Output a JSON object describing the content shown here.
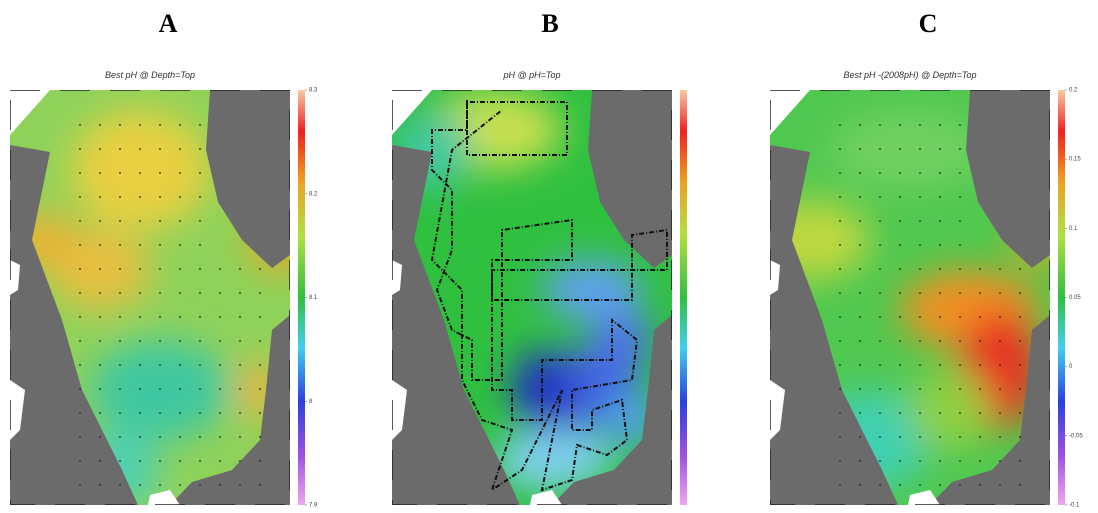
{
  "panels": [
    {
      "label": "A",
      "title": "Best pH @ Depth=Top",
      "colorbar": {
        "lim": [
          7.9,
          8.3
        ],
        "ticks": [
          7.9,
          8,
          8.1,
          8.2,
          8.3
        ]
      }
    },
    {
      "label": "B",
      "title": "pH @ pH=Top"
    },
    {
      "label": "C",
      "title": "Best pH -(2008pH) @ Depth=Top",
      "colorbar": {
        "lim": [
          -0.1,
          0.2
        ],
        "ticks": [
          -0.1,
          -0.05,
          0,
          0.05,
          0.1,
          0.15,
          0.2
        ]
      }
    }
  ]
}
